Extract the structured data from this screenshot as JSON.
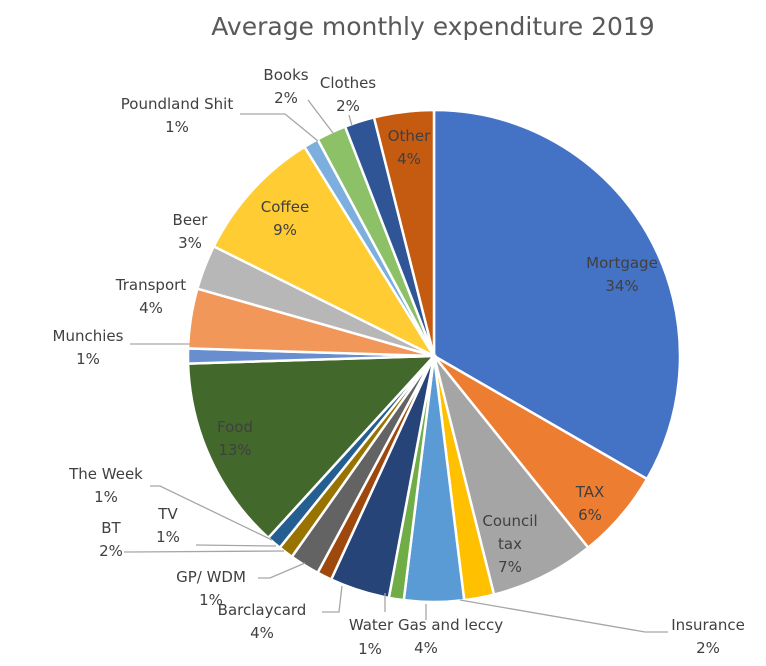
{
  "chart_data": {
    "type": "pie",
    "title": "Average monthly expenditure 2019",
    "slices": [
      {
        "label": "Mortgage",
        "value": 34,
        "value_label": "34%",
        "color": "#4472C4",
        "label_lines": [
          "Mortgage"
        ],
        "placement": "inside"
      },
      {
        "label": "TAX",
        "value": 6,
        "value_label": "6%",
        "color": "#ED7D31",
        "label_lines": [
          "TAX"
        ],
        "placement": "inside"
      },
      {
        "label": "Council tax",
        "value": 7,
        "value_label": "7%",
        "color": "#A5A5A5",
        "label_lines": [
          "Council",
          "tax"
        ],
        "placement": "inside"
      },
      {
        "label": "Insurance",
        "value": 2,
        "value_label": "2%",
        "color": "#FFC000",
        "label_lines": [
          "Insurance"
        ],
        "placement": "outside"
      },
      {
        "label": "Water Gas and leccy",
        "value": 4,
        "value_label": "4%",
        "color": "#5B9BD5",
        "label_lines": [
          "Water Gas and leccy"
        ],
        "placement": "outside"
      },
      {
        "label": "Water",
        "value": 1,
        "value_label": "1%",
        "color": "#70AD47",
        "label_lines": [],
        "placement": "outside"
      },
      {
        "label": "Barclaycard",
        "value": 4,
        "value_label": "4%",
        "color": "#264478",
        "label_lines": [
          "Barclaycard"
        ],
        "placement": "outside"
      },
      {
        "label": "GP/ WDM",
        "value": 1,
        "value_label": "1%",
        "color": "#9E480E",
        "label_lines": [
          "GP/ WDM"
        ],
        "placement": "outside"
      },
      {
        "label": "BT",
        "value": 2,
        "value_label": "2%",
        "color": "#636363",
        "label_lines": [
          "BT"
        ],
        "placement": "outside"
      },
      {
        "label": "TV",
        "value": 1,
        "value_label": "1%",
        "color": "#997300",
        "label_lines": [
          "TV"
        ],
        "placement": "outside"
      },
      {
        "label": "The Week",
        "value": 1,
        "value_label": "1%",
        "color": "#255E91",
        "label_lines": [
          "The Week"
        ],
        "placement": "outside"
      },
      {
        "label": "Food",
        "value": 13,
        "value_label": "13%",
        "color": "#43682B",
        "label_lines": [
          "Food"
        ],
        "placement": "inside"
      },
      {
        "label": "Munchies",
        "value": 1,
        "value_label": "1%",
        "color": "#698ED0",
        "label_lines": [
          "Munchies"
        ],
        "placement": "outside"
      },
      {
        "label": "Transport",
        "value": 4,
        "value_label": "4%",
        "color": "#F1975A",
        "label_lines": [
          "Transport"
        ],
        "placement": "outside"
      },
      {
        "label": "Beer",
        "value": 3,
        "value_label": "3%",
        "color": "#B7B7B7",
        "label_lines": [
          "Beer"
        ],
        "placement": "outside"
      },
      {
        "label": "Coffee",
        "value": 9,
        "value_label": "9%",
        "color": "#FFCD33",
        "label_lines": [
          "Coffee"
        ],
        "placement": "inside"
      },
      {
        "label": "Poundland Shit",
        "value": 1,
        "value_label": "1%",
        "color": "#7CAFDD",
        "label_lines": [
          "Poundland Shit"
        ],
        "placement": "outside"
      },
      {
        "label": "Books",
        "value": 2,
        "value_label": "2%",
        "color": "#8CC168",
        "label_lines": [
          "Books"
        ],
        "placement": "outside"
      },
      {
        "label": "Clothes",
        "value": 2,
        "value_label": "2%",
        "color": "#2F5597",
        "label_lines": [
          "Clothes"
        ],
        "placement": "outside"
      },
      {
        "label": "Other",
        "value": 4,
        "value_label": "4%",
        "color": "#C55A11",
        "label_lines": [
          "Other"
        ],
        "placement": "inside"
      }
    ],
    "legend": "none",
    "data_labels": "category and percentage"
  }
}
